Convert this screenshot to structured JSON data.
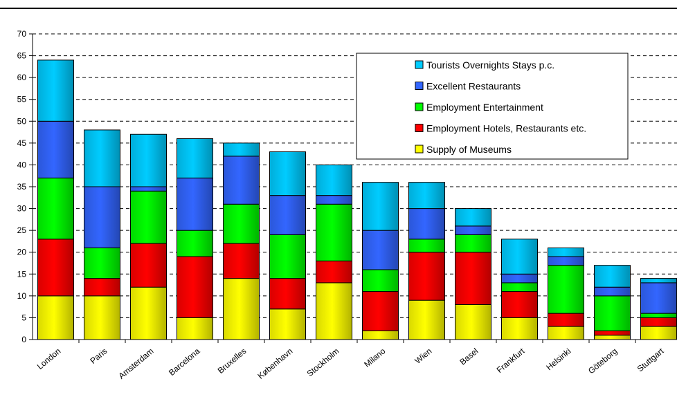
{
  "chart_data": {
    "type": "bar",
    "stacked": true,
    "categories": [
      "London",
      "Paris",
      "Amsterdam",
      "Barcelona",
      "Bruxelles",
      "København",
      "Stockholm",
      "Milano",
      "Wien",
      "Basel",
      "Frankfurt",
      "Helsinki",
      "Göteborg",
      "Stuttgart"
    ],
    "series": [
      {
        "name": "Supply of Museums",
        "color": "#ffff00",
        "values": [
          10,
          10,
          12,
          5,
          14,
          7,
          13,
          2,
          9,
          8,
          5,
          3,
          1,
          3
        ]
      },
      {
        "name": "Employment Hotels, Restaurants etc.",
        "color": "#ff0000",
        "values": [
          13,
          4,
          10,
          14,
          8,
          7,
          5,
          9,
          11,
          12,
          6,
          3,
          1,
          2
        ]
      },
      {
        "name": "Employment Entertainment",
        "color": "#00ff00",
        "values": [
          14,
          7,
          12,
          6,
          9,
          10,
          13,
          5,
          3,
          4,
          2,
          11,
          8,
          1
        ]
      },
      {
        "name": "Excellent Restaurants",
        "color": "#3366ff",
        "values": [
          13,
          14,
          1,
          12,
          11,
          9,
          2,
          9,
          7,
          2,
          2,
          2,
          2,
          7
        ]
      },
      {
        "name": "Tourists Overnights Stays p.c.",
        "color": "#00ccff",
        "values": [
          14,
          13,
          12,
          9,
          3,
          10,
          7,
          11,
          6,
          4,
          8,
          2,
          5,
          1
        ]
      }
    ],
    "ylim": [
      0,
      70
    ],
    "yticks": [
      0,
      5,
      10,
      15,
      20,
      25,
      30,
      35,
      40,
      45,
      50,
      55,
      60,
      65,
      70
    ],
    "grid": "horizontal dashed",
    "legend_position": "top-right",
    "legend_order": [
      "Tourists Overnights Stays p.c.",
      "Excellent Restaurants",
      "Employment Entertainment",
      "Employment Hotels, Restaurants etc.",
      "Supply of Museums"
    ]
  }
}
